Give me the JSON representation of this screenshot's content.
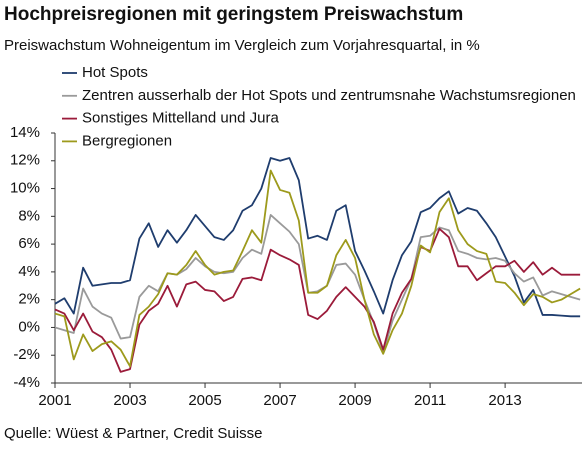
{
  "chart_data": {
    "type": "line",
    "title": "Hochpreisregionen mit geringstem Preiswachstum",
    "subtitle": "Preiswachstum Wohneigentum im Vergleich zum Vorjahresquartal, in %",
    "source": "Quelle: Wüest & Partner, Credit Suisse",
    "x": [
      2001,
      2001.25,
      2001.5,
      2001.75,
      2002,
      2002.25,
      2002.5,
      2002.75,
      2003,
      2003.25,
      2003.5,
      2003.75,
      2004,
      2004.25,
      2004.5,
      2004.75,
      2005,
      2005.25,
      2005.5,
      2005.75,
      2006,
      2006.25,
      2006.5,
      2006.75,
      2007,
      2007.25,
      2007.5,
      2007.75,
      2008,
      2008.25,
      2008.5,
      2008.75,
      2009,
      2009.25,
      2009.5,
      2009.75,
      2010,
      2010.25,
      2010.5,
      2010.75,
      2011,
      2011.25,
      2011.5,
      2011.75,
      2012,
      2012.25,
      2012.5,
      2012.75,
      2013,
      2013.25,
      2013.5,
      2013.75,
      2014,
      2014.25,
      2014.5,
      2014.75,
      2015
    ],
    "series": [
      {
        "name": "Hot Spots",
        "color": "#1f3d6e",
        "values": [
          1.7,
          2.1,
          1.0,
          4.3,
          3.0,
          3.1,
          3.2,
          3.2,
          3.4,
          6.4,
          7.5,
          5.8,
          7.0,
          6.1,
          7.0,
          8.1,
          7.3,
          6.5,
          6.3,
          7.0,
          8.4,
          8.8,
          10.0,
          12.2,
          12.0,
          12.2,
          10.6,
          6.4,
          6.6,
          6.3,
          8.4,
          8.8,
          5.5,
          4.1,
          2.6,
          1.0,
          3.4,
          5.2,
          6.2,
          8.3,
          8.6,
          9.3,
          9.8,
          8.2,
          8.6,
          8.4,
          7.5,
          6.5,
          5.1,
          3.7,
          1.8,
          2.7,
          0.9,
          0.9,
          0.85,
          0.8,
          0.8
        ]
      },
      {
        "name": "Zentren ausserhalb der Hot Spots und zentrumsnahe Wachstumsregionen",
        "color": "#9a9a9a",
        "values": [
          0.0,
          -0.2,
          -0.4,
          2.8,
          1.5,
          1.0,
          0.7,
          -0.8,
          -0.7,
          2.2,
          3.0,
          2.6,
          3.9,
          3.8,
          4.2,
          5.0,
          4.4,
          4.0,
          3.9,
          4.0,
          5.0,
          5.6,
          5.3,
          8.1,
          7.5,
          6.9,
          6.0,
          2.5,
          2.6,
          3.0,
          4.5,
          4.6,
          3.8,
          2.0,
          0.3,
          -1.8,
          0.5,
          2.0,
          3.5,
          6.5,
          6.6,
          7.2,
          7.0,
          5.5,
          5.3,
          5.0,
          4.9,
          5.0,
          4.8,
          3.9,
          3.3,
          3.6,
          2.3,
          2.6,
          2.4,
          2.2,
          2.0
        ]
      },
      {
        "name": "Sonstiges Mittelland und Jura",
        "color": "#9b1b3a",
        "values": [
          1.3,
          1.0,
          -0.2,
          1.0,
          -0.3,
          -0.7,
          -1.6,
          -3.2,
          -3.0,
          0.2,
          1.2,
          1.7,
          3.0,
          1.5,
          3.1,
          3.3,
          2.7,
          2.6,
          1.9,
          2.2,
          3.5,
          3.6,
          3.4,
          5.6,
          5.2,
          4.9,
          4.5,
          0.9,
          0.6,
          1.2,
          2.2,
          2.9,
          2.2,
          1.5,
          0.4,
          -1.6,
          1.0,
          2.5,
          3.5,
          5.8,
          5.5,
          7.1,
          6.5,
          4.4,
          4.4,
          3.4,
          3.9,
          4.4,
          4.4,
          4.8,
          4.0,
          4.7,
          3.8,
          4.3,
          3.8,
          3.8,
          3.8
        ]
      },
      {
        "name": "Bergregionen",
        "color": "#9d9a1c",
        "values": [
          1.0,
          0.8,
          -2.3,
          -0.5,
          -1.7,
          -1.2,
          -1.0,
          -1.6,
          -2.8,
          0.9,
          1.5,
          2.4,
          3.9,
          3.8,
          4.5,
          5.5,
          4.5,
          3.8,
          4.0,
          4.1,
          5.5,
          7.0,
          6.1,
          11.3,
          9.9,
          9.7,
          7.7,
          2.5,
          2.5,
          3.0,
          5.2,
          6.3,
          5.0,
          2.0,
          -0.5,
          -1.9,
          -0.2,
          1.0,
          3.0,
          5.9,
          5.4,
          8.3,
          9.3,
          7.0,
          6.0,
          5.5,
          5.3,
          3.3,
          3.2,
          2.5,
          1.6,
          2.4,
          2.2,
          1.8,
          2.0,
          2.4,
          2.8
        ]
      }
    ],
    "xlim": [
      2001,
      2015.05
    ],
    "xticks": [
      2001,
      2003,
      2005,
      2007,
      2009,
      2011,
      2013
    ],
    "ylim": [
      -4,
      14
    ],
    "yticks": [
      {
        "value": -4,
        "label": "-4%"
      },
      {
        "value": -2,
        "label": "-2%"
      },
      {
        "value": 0,
        "label": "0%"
      },
      {
        "value": 2,
        "label": "2%"
      },
      {
        "value": 4,
        "label": "4%"
      },
      {
        "value": 6,
        "label": "6%"
      },
      {
        "value": 8,
        "label": "8%"
      },
      {
        "value": 10,
        "label": "10%"
      },
      {
        "value": 12,
        "label": "12%"
      },
      {
        "value": 14,
        "label": "14%"
      }
    ],
    "grid": false
  }
}
